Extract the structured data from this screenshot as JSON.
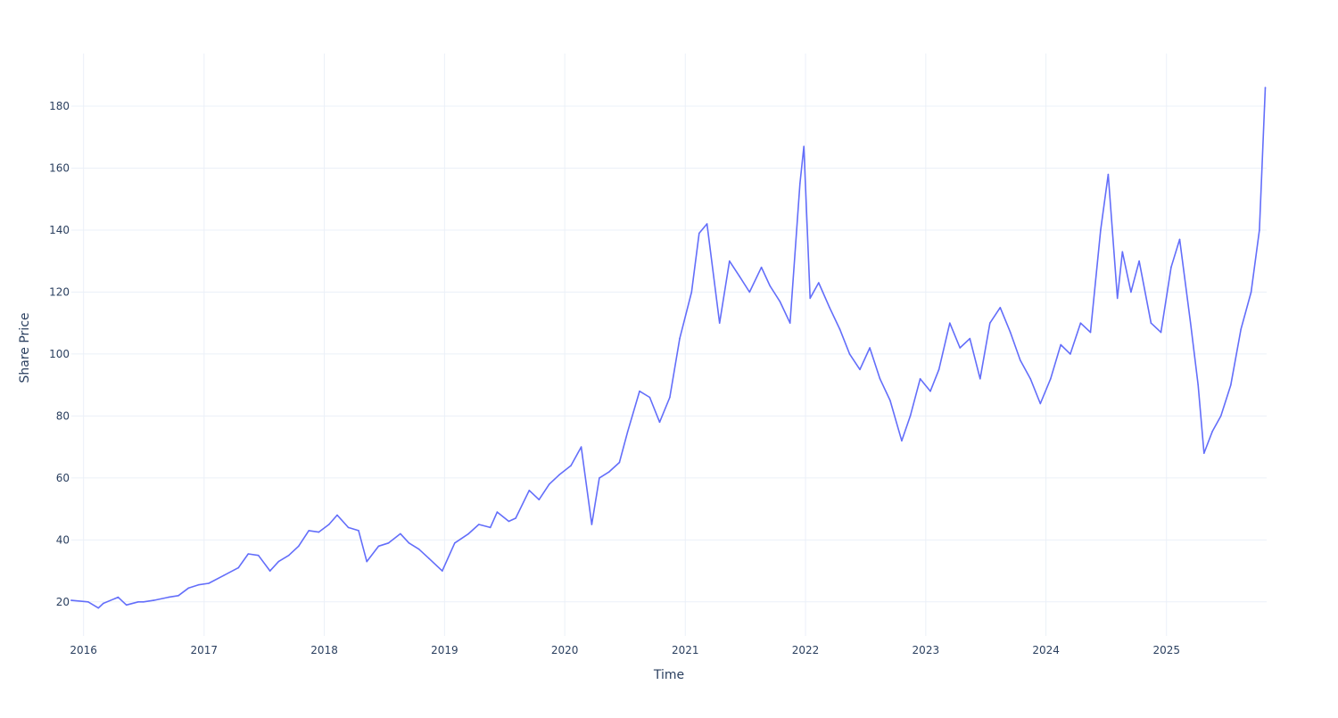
{
  "chart_data": {
    "type": "line",
    "title": "",
    "xlabel": "Time",
    "ylabel": "Share Price",
    "x_ticks": [
      "2016",
      "2017",
      "2018",
      "2019",
      "2020",
      "2021",
      "2022",
      "2023",
      "2024",
      "2025"
    ],
    "y_ticks": [
      20,
      40,
      60,
      80,
      100,
      120,
      140,
      160,
      180
    ],
    "xlim": [
      "2015-11-25",
      "2025-11-01"
    ],
    "ylim": [
      9,
      197
    ],
    "grid": true,
    "legend": "none",
    "colors": {
      "line": "#636efa",
      "grid": "#ebf0f8",
      "text": "#2a3f5f",
      "background": "#ffffff"
    },
    "series": [
      {
        "x": [
          "2015-11-25",
          "2016-01-15",
          "2016-02-15",
          "2016-03-01",
          "2016-04-15",
          "2016-05-10",
          "2016-06-15",
          "2016-07-01",
          "2016-08-01",
          "2016-09-15",
          "2016-10-15",
          "2016-11-15",
          "2016-12-15",
          "2017-01-15",
          "2017-03-01",
          "2017-04-15",
          "2017-05-15",
          "2017-06-15",
          "2017-07-20",
          "2017-08-15",
          "2017-09-15",
          "2017-10-15",
          "2017-11-15",
          "2017-12-15",
          "2018-01-15",
          "2018-02-09",
          "2018-03-15",
          "2018-04-15",
          "2018-05-10",
          "2018-06-15",
          "2018-07-15",
          "2018-08-20",
          "2018-09-15",
          "2018-10-15",
          "2018-11-15",
          "2018-12-25",
          "2019-02-01",
          "2019-03-15",
          "2019-04-15",
          "2019-05-20",
          "2019-06-10",
          "2019-07-15",
          "2019-08-05",
          "2019-09-15",
          "2019-10-15",
          "2019-11-15",
          "2019-12-15",
          "2020-01-20",
          "2020-02-20",
          "2020-03-23",
          "2020-04-15",
          "2020-05-15",
          "2020-06-15",
          "2020-07-10",
          "2020-08-15",
          "2020-09-15",
          "2020-10-15",
          "2020-11-15",
          "2020-12-15",
          "2021-01-20",
          "2021-02-12",
          "2021-03-08",
          "2021-04-15",
          "2021-05-15",
          "2021-06-15",
          "2021-07-15",
          "2021-08-20",
          "2021-09-15",
          "2021-10-15",
          "2021-11-15",
          "2021-12-15",
          "2021-12-27",
          "2022-01-15",
          "2022-02-10",
          "2022-03-15",
          "2022-04-15",
          "2022-05-15",
          "2022-06-15",
          "2022-07-15",
          "2022-08-15",
          "2022-09-15",
          "2022-10-20",
          "2022-11-15",
          "2022-12-15",
          "2023-01-15",
          "2023-02-10",
          "2023-03-15",
          "2023-04-15",
          "2023-05-15",
          "2023-06-15",
          "2023-07-15",
          "2023-08-15",
          "2023-09-15",
          "2023-10-15",
          "2023-11-15",
          "2023-12-15",
          "2024-01-15",
          "2024-02-15",
          "2024-03-15",
          "2024-04-15",
          "2024-05-15",
          "2024-06-15",
          "2024-07-08",
          "2024-08-05",
          "2024-08-20",
          "2024-09-15",
          "2024-10-10",
          "2024-11-15",
          "2024-12-15",
          "2025-01-15",
          "2025-02-10",
          "2025-03-15",
          "2025-04-07",
          "2025-04-25",
          "2025-05-20",
          "2025-06-15",
          "2025-07-15",
          "2025-08-15",
          "2025-09-15",
          "2025-10-10",
          "2025-10-28"
        ],
        "values": [
          20.5,
          20,
          18,
          19.5,
          21.5,
          19,
          20,
          20,
          20.5,
          21.5,
          22,
          24.5,
          25.5,
          26,
          28.5,
          31,
          35.5,
          35,
          30,
          33,
          35,
          38,
          43,
          42.5,
          45,
          48,
          44,
          43,
          33,
          38,
          39,
          42,
          39,
          37,
          34,
          30,
          39,
          42,
          45,
          44,
          49,
          46,
          47,
          56,
          53,
          58,
          61,
          64,
          70,
          45,
          60,
          62,
          65,
          75,
          88,
          86,
          78,
          86,
          105,
          120,
          139,
          142,
          110,
          130,
          125,
          120,
          128,
          122,
          117,
          110,
          155,
          167,
          118,
          123,
          115,
          108,
          100,
          95,
          102,
          92,
          85,
          72,
          80,
          92,
          88,
          95,
          110,
          102,
          105,
          92,
          110,
          115,
          107,
          98,
          92,
          84,
          92,
          103,
          100,
          110,
          107,
          140,
          158,
          118,
          133,
          120,
          130,
          110,
          107,
          128,
          137,
          110,
          90,
          68,
          75,
          80,
          90,
          108,
          120,
          140,
          186
        ]
      }
    ]
  }
}
